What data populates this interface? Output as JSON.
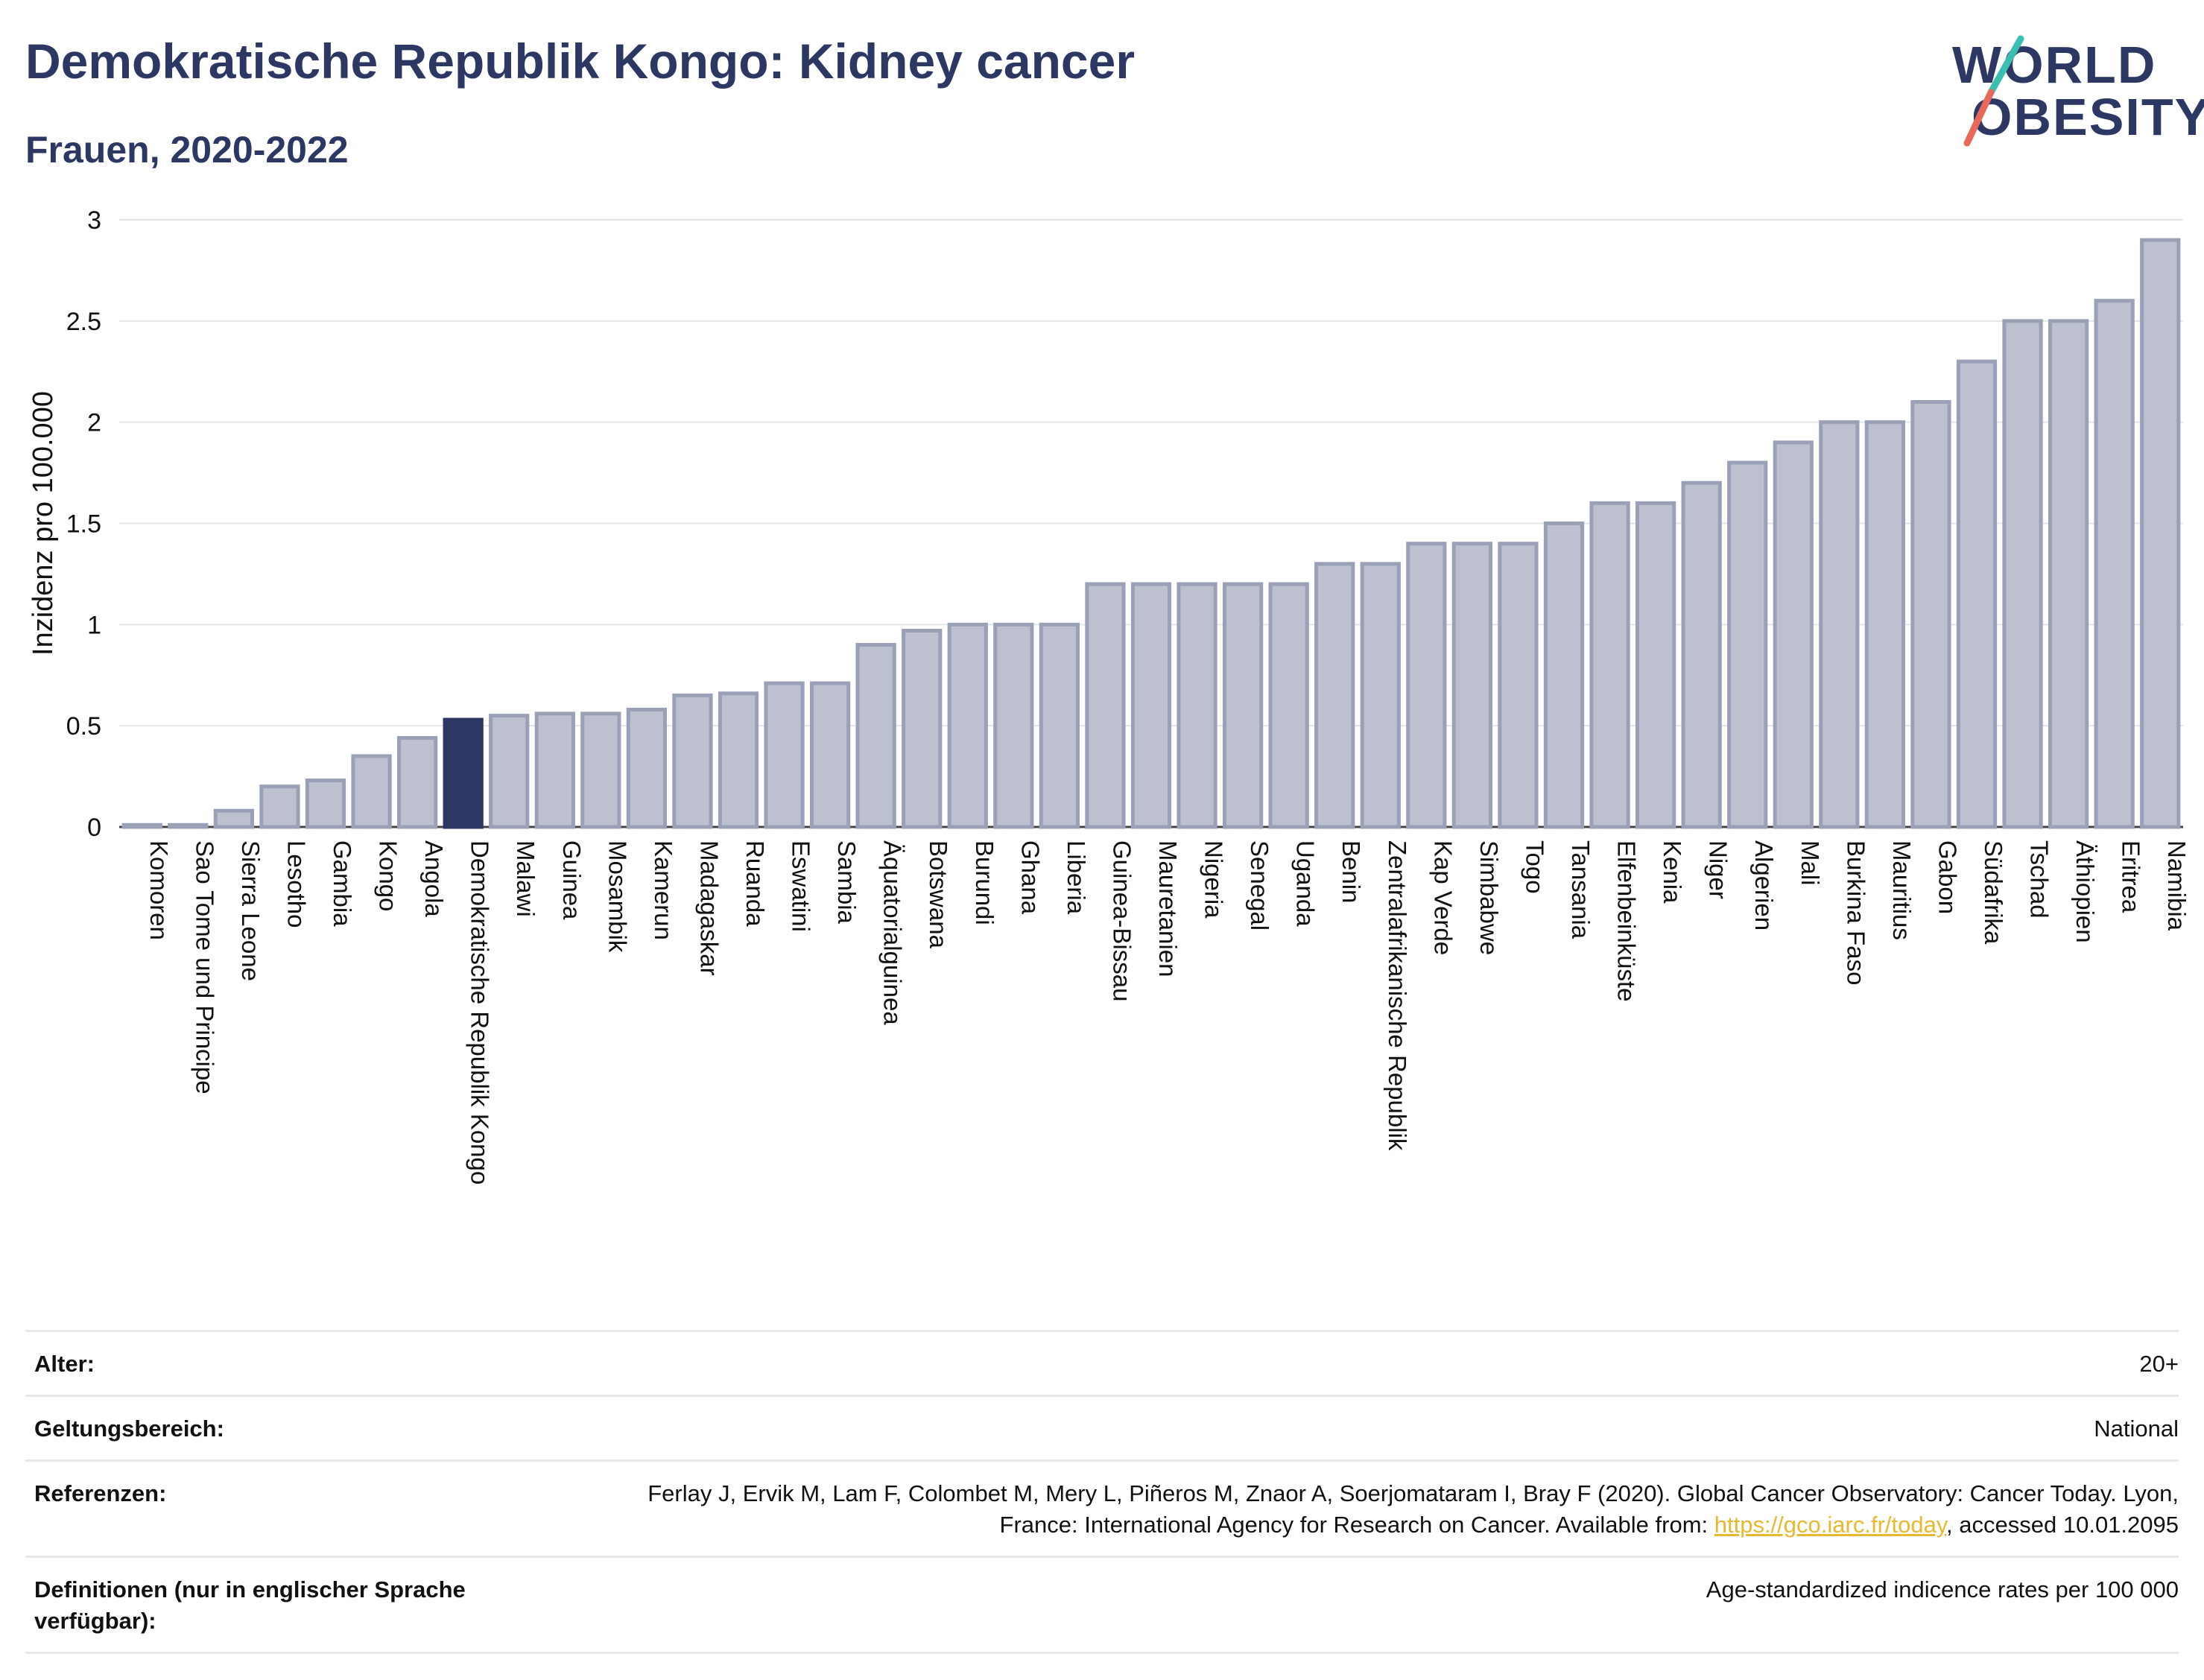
{
  "header": {
    "title": "Demokratische Republik Kongo: Kidney cancer",
    "subtitle": "Frauen, 2020-2022"
  },
  "logo": {
    "line1": "WORLD",
    "line2": "OBESITY"
  },
  "colors": {
    "highlight": "#2c3863",
    "bar_fill": "#bcc0cf",
    "bar_stroke": "#9aa0b6",
    "accent_teal": "#3bbfb0",
    "accent_red": "#e8695a",
    "link": "#e8b92e"
  },
  "chart_data": {
    "type": "bar",
    "ylabel": "Inzidenz pro 100.000",
    "ylim": [
      0,
      3
    ],
    "yticks": [
      "0",
      "0.5",
      "1",
      "1.5",
      "2",
      "2.5",
      "3"
    ],
    "highlight": "Demokratische Republik Kongo",
    "grid": true,
    "categories": [
      "Komoren",
      "Sao Tome und Principe",
      "Sierra Leone",
      "Lesotho",
      "Gambia",
      "Kongo",
      "Angola",
      "Demokratische Republik Kongo",
      "Malawi",
      "Guinea",
      "Mosambik",
      "Kamerun",
      "Madagaskar",
      "Ruanda",
      "Eswatini",
      "Sambia",
      "Äquatorialguinea",
      "Botswana",
      "Burundi",
      "Ghana",
      "Liberia",
      "Guinea-Bissau",
      "Mauretanien",
      "Nigeria",
      "Senegal",
      "Uganda",
      "Benin",
      "Zentralafrikanische Republik",
      "Kap Verde",
      "Simbabwe",
      "Togo",
      "Tansania",
      "Elfenbeinküste",
      "Kenia",
      "Niger",
      "Algerien",
      "Mali",
      "Burkina Faso",
      "Mauritius",
      "Gabon",
      "Südafrika",
      "Tschad",
      "Äthiopien",
      "Eritrea",
      "Namibia"
    ],
    "values": [
      0.01,
      0.01,
      0.08,
      0.2,
      0.23,
      0.35,
      0.44,
      0.53,
      0.55,
      0.56,
      0.56,
      0.58,
      0.65,
      0.66,
      0.71,
      0.71,
      0.9,
      0.97,
      1.0,
      1.0,
      1.0,
      1.2,
      1.2,
      1.2,
      1.2,
      1.2,
      1.3,
      1.3,
      1.4,
      1.4,
      1.4,
      1.5,
      1.6,
      1.6,
      1.7,
      1.8,
      1.9,
      2.0,
      2.0,
      2.1,
      2.3,
      2.5,
      2.5,
      2.6,
      2.9
    ]
  },
  "meta": {
    "age_label": "Alter:",
    "age_value": "20+",
    "scope_label": "Geltungsbereich:",
    "scope_value": "National",
    "ref_label": "Referenzen:",
    "ref_text_1": "Ferlay J, Ervik M, Lam F, Colombet M, Mery L, Piñeros M, Znaor A, Soerjomataram I, Bray F (2020). Global Cancer Observatory: Cancer Today. Lyon, France: International Agency for Research on Cancer. Available from: ",
    "ref_link": "https://gco.iarc.fr/today",
    "ref_text_2": ", accessed 10.01.2095",
    "def_label": "Definitionen (nur in englischer Sprache verfügbar):",
    "def_value": "Age-standardized indicence rates per 100 000"
  }
}
